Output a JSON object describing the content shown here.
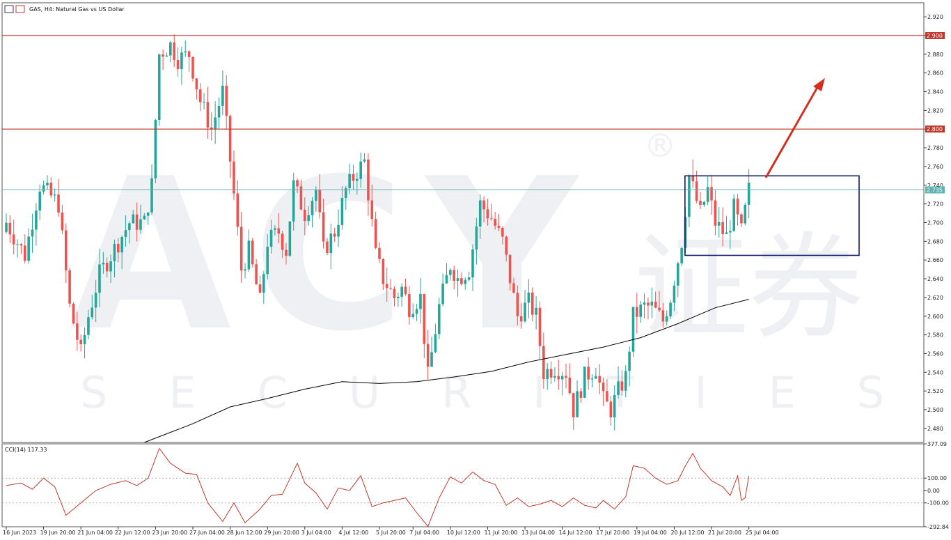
{
  "title": "GAS, H4: Natural Gas vs US Dollar",
  "watermark": {
    "brand": "ACY",
    "sub": "SECURITIES",
    "cjk": "证券",
    "reg": "®"
  },
  "colors": {
    "bull": "#26a69a",
    "bear": "#ef5350",
    "resistance": "#c0392b",
    "price_line": "#5fb3b3",
    "box": "#0d1a6b",
    "arrow": "#d42f1e",
    "ma": "#000000",
    "cci": "#c0392b",
    "grid_dotted": "#999999"
  },
  "chart_data": [
    {
      "type": "candlestick",
      "symbol": "GAS",
      "timeframe": "H4",
      "ylim": [
        2.465,
        2.935
      ],
      "yticks": [
        "2.920",
        "2.900",
        "2.880",
        "2.860",
        "2.840",
        "2.820",
        "2.800",
        "2.780",
        "2.760",
        "2.740",
        "2.720",
        "2.700",
        "2.680",
        "2.660",
        "2.640",
        "2.620",
        "2.600",
        "2.580",
        "2.560",
        "2.540",
        "2.520",
        "2.500",
        "2.480"
      ],
      "xlabels": [
        "16 Jun 2023",
        "19 Jun 20:00",
        "21 Jun 04:00",
        "22 Jun 12:00",
        "23 Jun 20:00",
        "27 Jun 04:00",
        "28 Jun 12:00",
        "29 Jun 20:00",
        "3 Jul 04:00",
        "4 Jul 12:00",
        "5 Jul 20:00",
        "7 Jul 04:00",
        "10 Jul 12:00",
        "11 Jul 20:00",
        "13 Jul 04:00",
        "14 Jul 12:00",
        "17 Jul 20:00",
        "19 Jul 04:00",
        "20 Jul 12:00",
        "21 Jul 20:00",
        "25 Jul 04:00"
      ],
      "horizontal_lines": [
        {
          "label": "2.900",
          "value": 2.9
        },
        {
          "label": "2.800",
          "value": 2.8
        }
      ],
      "current_price": {
        "label": "2.735",
        "value": 2.735
      },
      "close_path": [
        {
          "i": 0,
          "v": 2.7
        },
        {
          "i": 5,
          "v": 2.665
        },
        {
          "i": 9,
          "v": 2.74
        },
        {
          "i": 14,
          "v": 2.72
        },
        {
          "i": 17,
          "v": 2.61
        },
        {
          "i": 20,
          "v": 2.56
        },
        {
          "i": 22,
          "v": 2.6
        },
        {
          "i": 25,
          "v": 2.645
        },
        {
          "i": 28,
          "v": 2.665
        },
        {
          "i": 33,
          "v": 2.7
        },
        {
          "i": 37,
          "v": 2.7
        },
        {
          "i": 39,
          "v": 2.74
        },
        {
          "i": 41,
          "v": 2.88
        },
        {
          "i": 44,
          "v": 2.89
        },
        {
          "i": 46,
          "v": 2.875
        },
        {
          "i": 49,
          "v": 2.88
        },
        {
          "i": 52,
          "v": 2.83
        },
        {
          "i": 55,
          "v": 2.8
        },
        {
          "i": 58,
          "v": 2.84
        },
        {
          "i": 61,
          "v": 2.73
        },
        {
          "i": 63,
          "v": 2.65
        },
        {
          "i": 65,
          "v": 2.67
        },
        {
          "i": 68,
          "v": 2.615
        },
        {
          "i": 70,
          "v": 2.68
        },
        {
          "i": 73,
          "v": 2.69
        },
        {
          "i": 75,
          "v": 2.67
        },
        {
          "i": 77,
          "v": 2.74
        },
        {
          "i": 80,
          "v": 2.71
        },
        {
          "i": 83,
          "v": 2.735
        },
        {
          "i": 85,
          "v": 2.67
        },
        {
          "i": 88,
          "v": 2.69
        },
        {
          "i": 91,
          "v": 2.735
        },
        {
          "i": 94,
          "v": 2.755
        },
        {
          "i": 96,
          "v": 2.765
        },
        {
          "i": 99,
          "v": 2.665
        },
        {
          "i": 101,
          "v": 2.64
        },
        {
          "i": 104,
          "v": 2.62
        },
        {
          "i": 106,
          "v": 2.63
        },
        {
          "i": 108,
          "v": 2.61
        },
        {
          "i": 111,
          "v": 2.62
        },
        {
          "i": 113,
          "v": 2.535
        },
        {
          "i": 116,
          "v": 2.61
        },
        {
          "i": 119,
          "v": 2.655
        },
        {
          "i": 121,
          "v": 2.64
        },
        {
          "i": 124,
          "v": 2.65
        },
        {
          "i": 127,
          "v": 2.72
        },
        {
          "i": 130,
          "v": 2.705
        },
        {
          "i": 133,
          "v": 2.68
        },
        {
          "i": 135,
          "v": 2.64
        },
        {
          "i": 137,
          "v": 2.6
        },
        {
          "i": 140,
          "v": 2.615
        },
        {
          "i": 142,
          "v": 2.6
        },
        {
          "i": 144,
          "v": 2.54
        },
        {
          "i": 147,
          "v": 2.545
        },
        {
          "i": 150,
          "v": 2.54
        },
        {
          "i": 152,
          "v": 2.5
        },
        {
          "i": 155,
          "v": 2.535
        },
        {
          "i": 158,
          "v": 2.545
        },
        {
          "i": 160,
          "v": 2.51
        },
        {
          "i": 162,
          "v": 2.5
        },
        {
          "i": 164,
          "v": 2.52
        },
        {
          "i": 166,
          "v": 2.535
        },
        {
          "i": 168,
          "v": 2.6
        },
        {
          "i": 171,
          "v": 2.61
        },
        {
          "i": 173,
          "v": 2.61
        },
        {
          "i": 176,
          "v": 2.595
        },
        {
          "i": 178,
          "v": 2.62
        },
        {
          "i": 181,
          "v": 2.68
        },
        {
          "i": 183,
          "v": 2.75
        },
        {
          "i": 186,
          "v": 2.71
        },
        {
          "i": 188,
          "v": 2.735
        },
        {
          "i": 190,
          "v": 2.7
        },
        {
          "i": 193,
          "v": 2.685
        },
        {
          "i": 195,
          "v": 2.715
        },
        {
          "i": 197,
          "v": 2.69
        },
        {
          "i": 199,
          "v": 2.735
        }
      ],
      "moving_average": [
        {
          "i": 37,
          "v": 2.465
        },
        {
          "i": 50,
          "v": 2.485
        },
        {
          "i": 60,
          "v": 2.503
        },
        {
          "i": 70,
          "v": 2.512
        },
        {
          "i": 80,
          "v": 2.522
        },
        {
          "i": 90,
          "v": 2.53
        },
        {
          "i": 100,
          "v": 2.528
        },
        {
          "i": 110,
          "v": 2.53
        },
        {
          "i": 120,
          "v": 2.535
        },
        {
          "i": 130,
          "v": 2.541
        },
        {
          "i": 140,
          "v": 2.551
        },
        {
          "i": 150,
          "v": 2.559
        },
        {
          "i": 160,
          "v": 2.567
        },
        {
          "i": 170,
          "v": 2.577
        },
        {
          "i": 180,
          "v": 2.592
        },
        {
          "i": 190,
          "v": 2.609
        },
        {
          "i": 199,
          "v": 2.618
        }
      ],
      "annotation_box": {
        "from": 2.75,
        "to": 2.665,
        "start_index": 183
      },
      "arrow": "up-right"
    },
    {
      "type": "line",
      "name": "CCI(14) 117.33",
      "ylim": [
        -292.84,
        377.09
      ],
      "ytick_labels": [
        "377.09",
        "100.00",
        "0.00",
        "-100.00",
        "-292.84"
      ],
      "levels": [
        100,
        -100
      ],
      "values_path": [
        {
          "i": 0,
          "v": 40
        },
        {
          "i": 4,
          "v": 60
        },
        {
          "i": 7,
          "v": 10
        },
        {
          "i": 10,
          "v": 100
        },
        {
          "i": 13,
          "v": 30
        },
        {
          "i": 16,
          "v": -200
        },
        {
          "i": 20,
          "v": -100
        },
        {
          "i": 24,
          "v": 0
        },
        {
          "i": 28,
          "v": 50
        },
        {
          "i": 32,
          "v": 80
        },
        {
          "i": 35,
          "v": 40
        },
        {
          "i": 38,
          "v": 100
        },
        {
          "i": 41,
          "v": 340
        },
        {
          "i": 44,
          "v": 220
        },
        {
          "i": 48,
          "v": 140
        },
        {
          "i": 51,
          "v": 130
        },
        {
          "i": 54,
          "v": -100
        },
        {
          "i": 58,
          "v": -250
        },
        {
          "i": 61,
          "v": -100
        },
        {
          "i": 64,
          "v": -260
        },
        {
          "i": 68,
          "v": -150
        },
        {
          "i": 71,
          "v": -40
        },
        {
          "i": 74,
          "v": -30
        },
        {
          "i": 78,
          "v": 220
        },
        {
          "i": 80,
          "v": 60
        },
        {
          "i": 83,
          "v": -20
        },
        {
          "i": 86,
          "v": -150
        },
        {
          "i": 89,
          "v": 20
        },
        {
          "i": 92,
          "v": 0
        },
        {
          "i": 95,
          "v": 120
        },
        {
          "i": 98,
          "v": -130
        },
        {
          "i": 101,
          "v": -100
        },
        {
          "i": 104,
          "v": -80
        },
        {
          "i": 107,
          "v": -60
        },
        {
          "i": 110,
          "v": -180
        },
        {
          "i": 113,
          "v": -290
        },
        {
          "i": 116,
          "v": -60
        },
        {
          "i": 119,
          "v": 110
        },
        {
          "i": 122,
          "v": 60
        },
        {
          "i": 125,
          "v": 150
        },
        {
          "i": 128,
          "v": 80
        },
        {
          "i": 131,
          "v": 50
        },
        {
          "i": 134,
          "v": -120
        },
        {
          "i": 137,
          "v": -60
        },
        {
          "i": 140,
          "v": -130
        },
        {
          "i": 143,
          "v": -110
        },
        {
          "i": 146,
          "v": -80
        },
        {
          "i": 149,
          "v": -130
        },
        {
          "i": 152,
          "v": -60
        },
        {
          "i": 155,
          "v": -120
        },
        {
          "i": 158,
          "v": -140
        },
        {
          "i": 160,
          "v": -80
        },
        {
          "i": 163,
          "v": -150
        },
        {
          "i": 166,
          "v": -50
        },
        {
          "i": 168,
          "v": 200
        },
        {
          "i": 171,
          "v": 180
        },
        {
          "i": 174,
          "v": 100
        },
        {
          "i": 177,
          "v": 50
        },
        {
          "i": 180,
          "v": 80
        },
        {
          "i": 182,
          "v": 200
        },
        {
          "i": 184,
          "v": 300
        },
        {
          "i": 186,
          "v": 180
        },
        {
          "i": 189,
          "v": 80
        },
        {
          "i": 192,
          "v": 30
        },
        {
          "i": 194,
          "v": -40
        },
        {
          "i": 196,
          "v": 120
        },
        {
          "i": 197,
          "v": -80
        },
        {
          "i": 198,
          "v": -60
        },
        {
          "i": 199,
          "v": 117
        }
      ]
    }
  ]
}
